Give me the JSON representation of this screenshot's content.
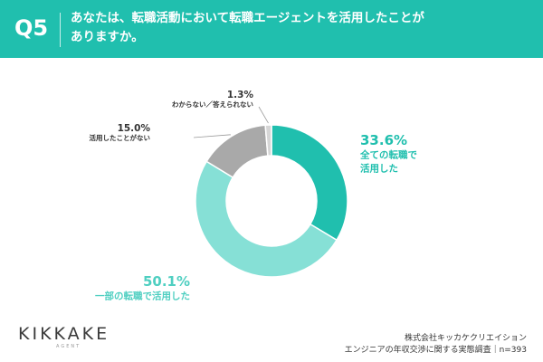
{
  "header": {
    "question_number": "Q5",
    "question_line1": "あなたは、転職活動において転職エージェントを活用したことが",
    "question_line2": "ありますか。"
  },
  "chart_data": {
    "type": "pie",
    "donut": true,
    "slices": [
      {
        "value": 33.6,
        "percent_label": "33.6%",
        "label_lines": [
          "全ての転職で",
          "活用した"
        ],
        "color": "#20bfae"
      },
      {
        "value": 50.1,
        "percent_label": "50.1%",
        "label_lines": [
          "一部の転職で活用した"
        ],
        "color": "#86e0d6"
      },
      {
        "value": 15.0,
        "percent_label": "15.0%",
        "label_lines": [
          "活用したことがない"
        ],
        "color": "#a9a9a9"
      },
      {
        "value": 1.3,
        "percent_label": "1.3%",
        "label_lines": [
          "わからない／答えられない"
        ],
        "color": "#d6d6d6"
      }
    ]
  },
  "footer": {
    "logo": "KIKKAKE",
    "logo_sub": "AGENT",
    "source_line1": "株式会社キッカケクリエイション",
    "source_line2": "エンジニアの年収交渉に関する実態調査｜n=393"
  }
}
